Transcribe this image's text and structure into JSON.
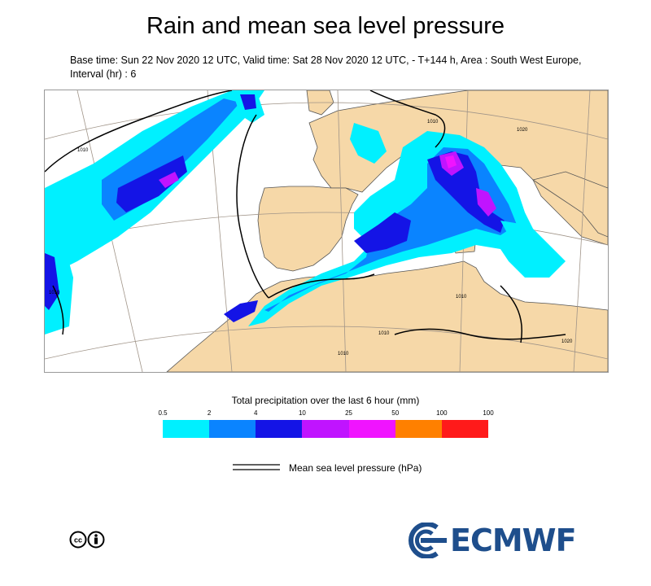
{
  "title": "Rain and mean sea level pressure",
  "subtitle": "Base time: Sun 22 Nov 2020 12 UTC, Valid time: Sat 28 Nov 2020 12 UTC, - T+144 h, Area : South West Europe, Interval (hr) : 6",
  "map": {
    "isobar_labels": [
      "1010",
      "1010",
      "1010",
      "1010",
      "1020",
      "1010",
      "1010",
      "1020"
    ]
  },
  "legend": {
    "title": "Total precipitation over the last 6 hour (mm)",
    "ticks": [
      "0.5",
      "2",
      "4",
      "10",
      "25",
      "50",
      "100",
      "100"
    ],
    "colors": [
      "#00f0ff",
      "#0a84ff",
      "#1414e6",
      "#c014ff",
      "#f014ff",
      "#ff8000",
      "#ff1a1a"
    ]
  },
  "pressure_legend": {
    "label": "Mean sea level pressure (hPa)"
  },
  "footer": {
    "license_icon": "cc-by-icon",
    "logo_text": "ECMWF"
  },
  "colors": {
    "land": "#f6d8a8",
    "sea": "#ffffff",
    "isobar": "#000000",
    "graticule": "#a09488",
    "logo": "#1e4e8c"
  }
}
